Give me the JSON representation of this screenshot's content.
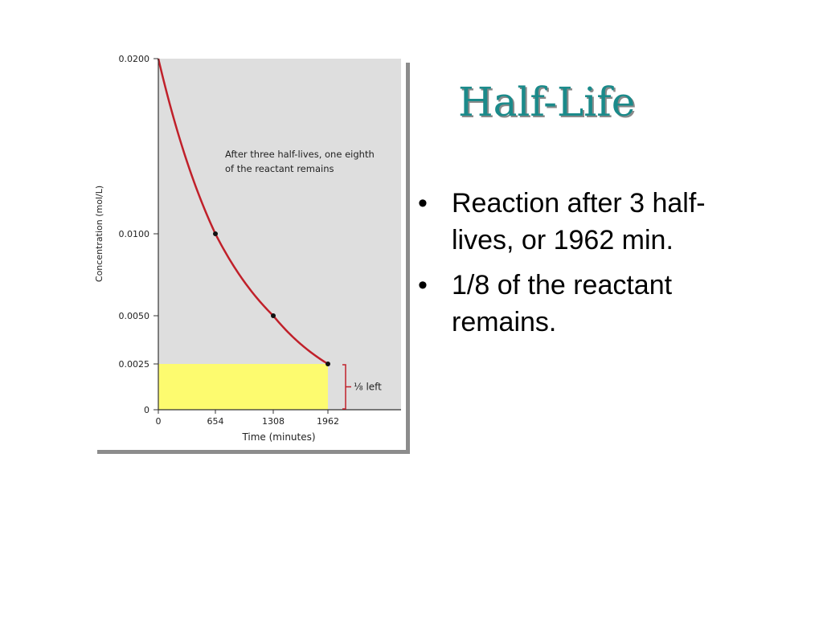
{
  "slide": {
    "title": "Half-Life",
    "bullets": [
      "Reaction after 3 half-lives, or 1962 min.",
      "1/8 of the reactant remains."
    ]
  },
  "chart_data": {
    "type": "line",
    "xlabel": "Time (minutes)",
    "ylabel": "Concentration (mol/L)",
    "xlim": [
      0,
      2800
    ],
    "ylim": [
      0,
      0.02
    ],
    "x_ticks": [
      "0",
      "654",
      "1308",
      "1962"
    ],
    "x_tick_values": [
      0,
      654,
      1308,
      1962
    ],
    "y_ticks": [
      "0",
      "0.0025",
      "0.0050",
      "0.0100",
      "0.0200"
    ],
    "y_tick_values": [
      0,
      0.0025,
      0.005,
      0.01,
      0.02
    ],
    "series": [
      {
        "type": "curve",
        "half_life": 654,
        "initial": 0.02,
        "x_range": [
          0,
          1962
        ],
        "color": "#c0202a"
      }
    ],
    "points": [
      {
        "x": 654,
        "y": 0.01
      },
      {
        "x": 1308,
        "y": 0.005
      },
      {
        "x": 1962,
        "y": 0.0025
      }
    ],
    "highlight_region": {
      "x_range": [
        0,
        1962
      ],
      "y_range": [
        0,
        0.0025
      ],
      "color": "#fdfb6f"
    },
    "annotation": "After three half-lives, one eighth of the reactant remains",
    "bracket_label": "⅛ left",
    "grid": false,
    "plot_background": "#dedede"
  }
}
